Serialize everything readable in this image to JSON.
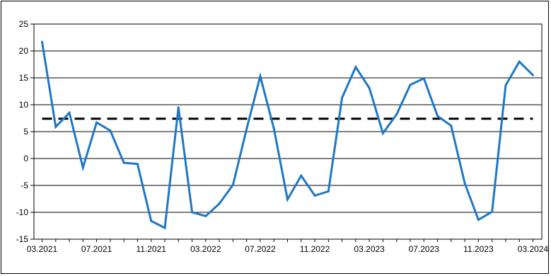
{
  "chart_data": {
    "type": "line",
    "title": "",
    "xlabel": "",
    "ylabel": "",
    "ylim": [
      -15,
      25
    ],
    "yticks": [
      -15,
      -10,
      -5,
      0,
      5,
      10,
      15,
      20,
      25
    ],
    "ytick_labels": [
      "-15",
      "-10",
      "-5",
      "0",
      "5",
      "10",
      "15",
      "20",
      "25"
    ],
    "xtick_labels": [
      "03.2021",
      "07.2021",
      "11.2021",
      "03.2022",
      "07.2022",
      "11.2022",
      "03.2023",
      "07.2023",
      "11.2023",
      "03.2024"
    ],
    "xtick_index": [
      0,
      4,
      8,
      12,
      16,
      20,
      24,
      28,
      32,
      36
    ],
    "grid": "horizontal",
    "legend": "none",
    "colors": {
      "series": "#1f77c4",
      "reference": "#000000",
      "grid": "#000000"
    },
    "series": [
      {
        "values": [
          21.7,
          5.9,
          8.5,
          -1.7,
          6.7,
          5.2,
          -0.8,
          -1.0,
          -11.6,
          -12.9,
          9.5,
          -10.0,
          -10.7,
          -8.4,
          -4.9,
          5.5,
          15.3,
          5.6,
          -7.6,
          -3.2,
          -6.9,
          -6.1,
          11.3,
          17.0,
          13.1,
          4.7,
          8.2,
          13.7,
          14.9,
          7.9,
          6.1,
          -4.6,
          -11.4,
          -9.9,
          13.6,
          18.0,
          15.5
        ]
      }
    ],
    "reference_line": {
      "value": 7.4,
      "style": "dashed"
    }
  }
}
